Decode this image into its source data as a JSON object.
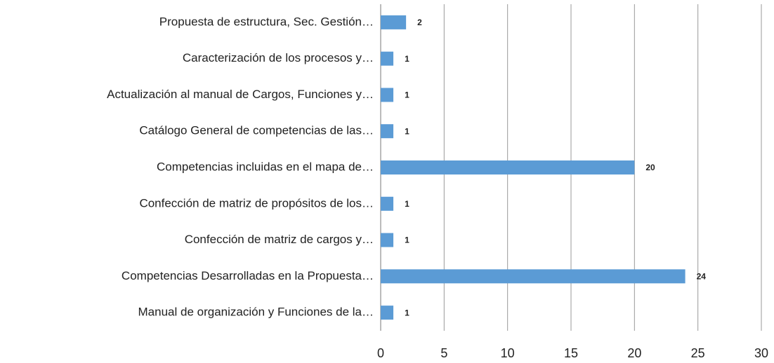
{
  "chart_data": {
    "type": "hbar",
    "categories": [
      "Propuesta de estructura, Sec. Gestión…",
      "Caracterización de los procesos y…",
      "Actualización al manual de Cargos, Funciones y…",
      "Catálogo General de competencias de las…",
      "Competencias incluidas en el mapa de…",
      "Confección de matriz de propósitos de los…",
      "Confección de matriz de cargos y…",
      "Competencias Desarrolladas en la Propuesta…",
      "Manual de organización y Funciones de la…"
    ],
    "values": [
      2,
      1,
      1,
      1,
      20,
      1,
      1,
      24,
      1
    ],
    "color": "#5b9bd5",
    "xlim": [
      0,
      30
    ],
    "xticks": [
      0,
      5,
      10,
      15,
      20,
      25,
      30
    ],
    "grid": true
  }
}
